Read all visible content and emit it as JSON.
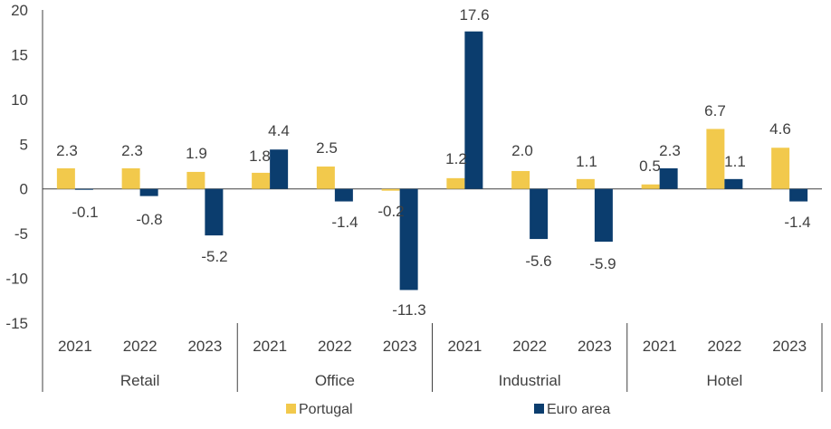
{
  "chart_data": {
    "type": "bar",
    "ylim": [
      -15,
      20
    ],
    "yticks": [
      20,
      15,
      10,
      5,
      0,
      -5,
      -10,
      -15
    ],
    "grid": false,
    "legend_position": "bottom",
    "groups": [
      {
        "label": "Retail",
        "categories": [
          "2021",
          "2022",
          "2023"
        ]
      },
      {
        "label": "Office",
        "categories": [
          "2021",
          "2022",
          "2023"
        ]
      },
      {
        "label": "Industrial",
        "categories": [
          "2021",
          "2022",
          "2023"
        ]
      },
      {
        "label": "Hotel",
        "categories": [
          "2021",
          "2022",
          "2023"
        ]
      }
    ],
    "series": [
      {
        "name": "Portugal",
        "color": "#f2c94c",
        "values": [
          2.3,
          2.3,
          1.9,
          1.8,
          2.5,
          -0.2,
          1.2,
          2.0,
          1.1,
          0.5,
          6.7,
          4.6
        ]
      },
      {
        "name": "Euro area",
        "color": "#0b3d6e",
        "values": [
          -0.1,
          -0.8,
          -5.2,
          4.4,
          -1.4,
          -11.3,
          17.6,
          -5.6,
          -5.9,
          2.3,
          1.1,
          -1.4
        ]
      }
    ],
    "value_labels": {
      "Portugal": [
        "2.3",
        "2.3",
        "1.9",
        "1.8",
        "2.5",
        "-0.2",
        "1.2",
        "2.0",
        "1.1",
        "0.5",
        "6.7",
        "4.6"
      ],
      "Euro area": [
        "-0.1",
        "-0.8",
        "-5.2",
        "4.4",
        "-1.4",
        "-11.3",
        "17.6",
        "-5.6",
        "-5.9",
        "2.3",
        "1.1",
        "-1.4"
      ]
    }
  }
}
